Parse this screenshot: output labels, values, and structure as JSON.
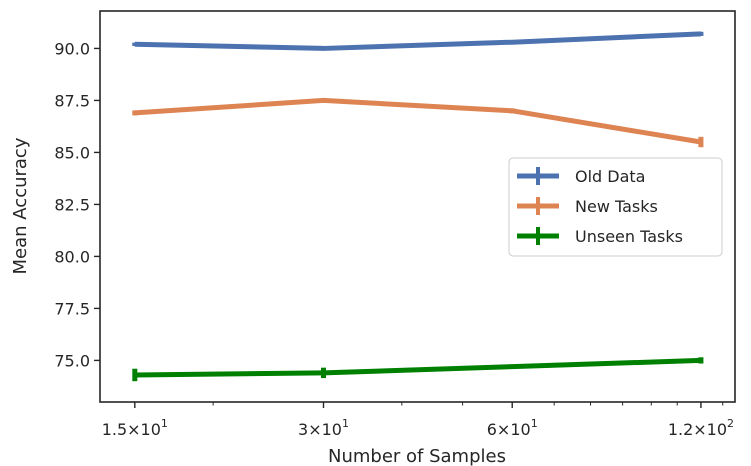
{
  "chart_data": {
    "type": "line",
    "xscale": "log",
    "x": [
      15,
      30,
      60,
      120
    ],
    "xticks": [
      {
        "value": 15,
        "mant": "1.5",
        "exp": "1"
      },
      {
        "value": 30,
        "mant": "3",
        "exp": "1"
      },
      {
        "value": 60,
        "mant": "6",
        "exp": "1"
      },
      {
        "value": 120,
        "mant": "1.2",
        "exp": "2"
      }
    ],
    "xlim": [
      13.2,
      136
    ],
    "ylim": [
      73.0,
      91.8
    ],
    "yticks": [
      "75.0",
      "77.5",
      "80.0",
      "82.5",
      "85.0",
      "87.5",
      "90.0"
    ],
    "xlabel": "Number of Samples",
    "ylabel": "Mean Accuracy",
    "grid": false,
    "legend_position": "center-right",
    "series": [
      {
        "name": "Old Data",
        "color": "#4c72b0",
        "values": [
          90.2,
          90.0,
          90.3,
          90.7
        ],
        "err": [
          0.08,
          0.05,
          0.05,
          0.1
        ]
      },
      {
        "name": "New Tasks",
        "color": "#dd8452",
        "values": [
          86.9,
          87.5,
          87.0,
          85.5
        ],
        "err": [
          0.12,
          0.05,
          0.12,
          0.25
        ]
      },
      {
        "name": "Unseen Tasks",
        "color": "#008000",
        "values": [
          74.3,
          74.4,
          74.7,
          75.0
        ],
        "err": [
          0.3,
          0.25,
          0.05,
          0.15
        ]
      }
    ]
  }
}
